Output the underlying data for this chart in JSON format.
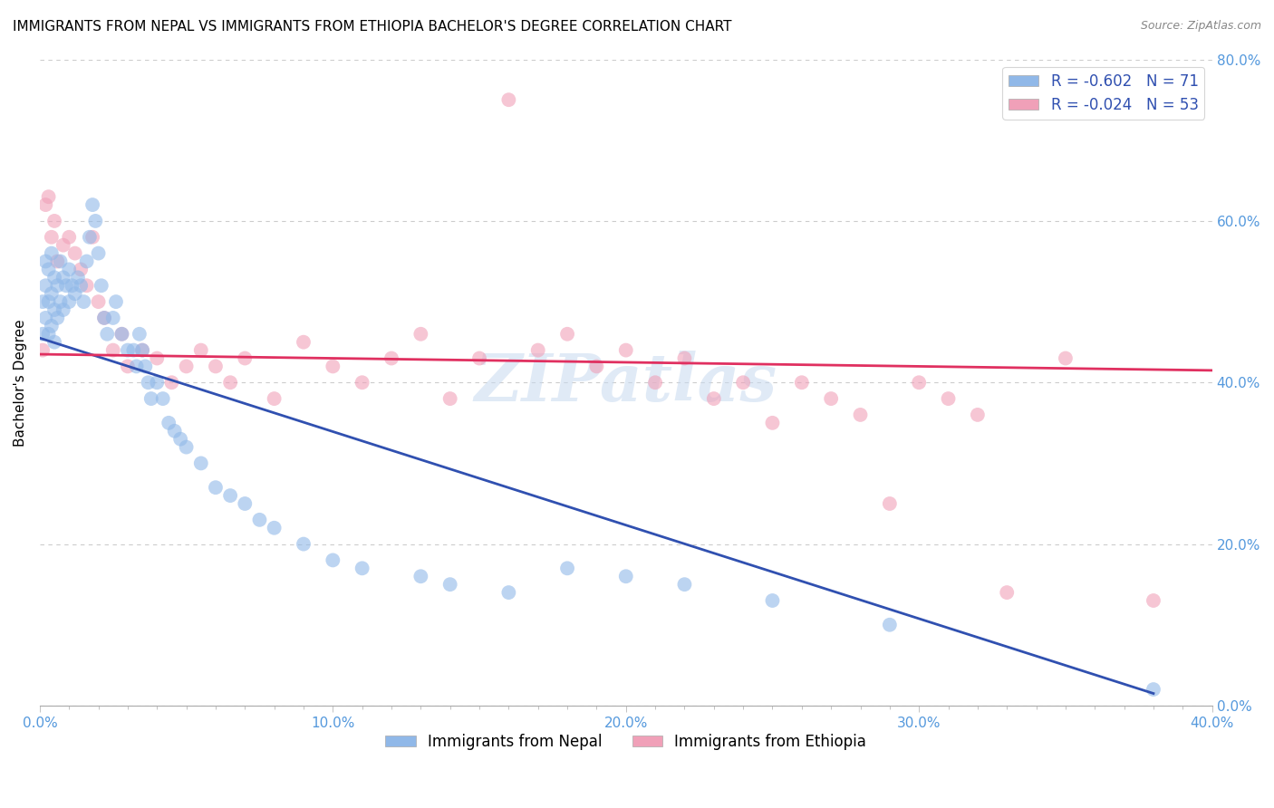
{
  "title": "IMMIGRANTS FROM NEPAL VS IMMIGRANTS FROM ETHIOPIA BACHELOR'S DEGREE CORRELATION CHART",
  "source": "Source: ZipAtlas.com",
  "ylabel": "Bachelor's Degree",
  "legend_labels_bottom": [
    "Immigrants from Nepal",
    "Immigrants from Ethiopia"
  ],
  "xlim": [
    0.0,
    0.4
  ],
  "ylim": [
    0.0,
    0.8
  ],
  "xticks_major": [
    0.0,
    0.1,
    0.2,
    0.3,
    0.4
  ],
  "yticks_major": [
    0.0,
    0.2,
    0.4,
    0.6,
    0.8
  ],
  "nepal_color": "#90b8e8",
  "ethiopia_color": "#f0a0b8",
  "nepal_line_color": "#3050b0",
  "ethiopia_line_color": "#e03060",
  "watermark": "ZIPatlas",
  "nepal_R": -0.602,
  "nepal_N": 71,
  "ethiopia_R": -0.024,
  "ethiopia_N": 53,
  "nepal_scatter_x": [
    0.001,
    0.001,
    0.002,
    0.002,
    0.002,
    0.003,
    0.003,
    0.003,
    0.004,
    0.004,
    0.004,
    0.005,
    0.005,
    0.005,
    0.006,
    0.006,
    0.007,
    0.007,
    0.008,
    0.008,
    0.009,
    0.01,
    0.01,
    0.011,
    0.012,
    0.013,
    0.014,
    0.015,
    0.016,
    0.017,
    0.018,
    0.019,
    0.02,
    0.021,
    0.022,
    0.023,
    0.025,
    0.026,
    0.028,
    0.03,
    0.032,
    0.033,
    0.034,
    0.035,
    0.036,
    0.037,
    0.038,
    0.04,
    0.042,
    0.044,
    0.046,
    0.048,
    0.05,
    0.055,
    0.06,
    0.065,
    0.07,
    0.075,
    0.08,
    0.09,
    0.1,
    0.11,
    0.13,
    0.14,
    0.16,
    0.18,
    0.2,
    0.22,
    0.25,
    0.29,
    0.38
  ],
  "nepal_scatter_y": [
    0.46,
    0.5,
    0.48,
    0.52,
    0.55,
    0.46,
    0.5,
    0.54,
    0.47,
    0.51,
    0.56,
    0.45,
    0.49,
    0.53,
    0.48,
    0.52,
    0.5,
    0.55,
    0.49,
    0.53,
    0.52,
    0.5,
    0.54,
    0.52,
    0.51,
    0.53,
    0.52,
    0.5,
    0.55,
    0.58,
    0.62,
    0.6,
    0.56,
    0.52,
    0.48,
    0.46,
    0.48,
    0.5,
    0.46,
    0.44,
    0.44,
    0.42,
    0.46,
    0.44,
    0.42,
    0.4,
    0.38,
    0.4,
    0.38,
    0.35,
    0.34,
    0.33,
    0.32,
    0.3,
    0.27,
    0.26,
    0.25,
    0.23,
    0.22,
    0.2,
    0.18,
    0.17,
    0.16,
    0.15,
    0.14,
    0.17,
    0.16,
    0.15,
    0.13,
    0.1,
    0.02
  ],
  "ethiopia_scatter_x": [
    0.001,
    0.002,
    0.003,
    0.004,
    0.005,
    0.006,
    0.008,
    0.01,
    0.012,
    0.014,
    0.016,
    0.018,
    0.02,
    0.022,
    0.025,
    0.028,
    0.03,
    0.035,
    0.04,
    0.045,
    0.05,
    0.055,
    0.06,
    0.065,
    0.07,
    0.08,
    0.09,
    0.1,
    0.11,
    0.12,
    0.13,
    0.14,
    0.15,
    0.16,
    0.17,
    0.18,
    0.19,
    0.2,
    0.21,
    0.22,
    0.23,
    0.24,
    0.25,
    0.26,
    0.27,
    0.28,
    0.29,
    0.3,
    0.31,
    0.32,
    0.33,
    0.35,
    0.38
  ],
  "ethiopia_scatter_y": [
    0.44,
    0.62,
    0.63,
    0.58,
    0.6,
    0.55,
    0.57,
    0.58,
    0.56,
    0.54,
    0.52,
    0.58,
    0.5,
    0.48,
    0.44,
    0.46,
    0.42,
    0.44,
    0.43,
    0.4,
    0.42,
    0.44,
    0.42,
    0.4,
    0.43,
    0.38,
    0.45,
    0.42,
    0.4,
    0.43,
    0.46,
    0.38,
    0.43,
    0.75,
    0.44,
    0.46,
    0.42,
    0.44,
    0.4,
    0.43,
    0.38,
    0.4,
    0.35,
    0.4,
    0.38,
    0.36,
    0.25,
    0.4,
    0.38,
    0.36,
    0.14,
    0.43,
    0.13
  ],
  "nepal_trendline_x": [
    0.0,
    0.38
  ],
  "nepal_trendline_y": [
    0.455,
    0.015
  ],
  "ethiopia_trendline_x": [
    0.0,
    0.4
  ],
  "ethiopia_trendline_y": [
    0.435,
    0.415
  ],
  "background_color": "#ffffff",
  "grid_color": "#cccccc",
  "title_fontsize": 11,
  "axis_label_fontsize": 11,
  "tick_label_color": "#5599dd",
  "tick_label_fontsize": 11
}
